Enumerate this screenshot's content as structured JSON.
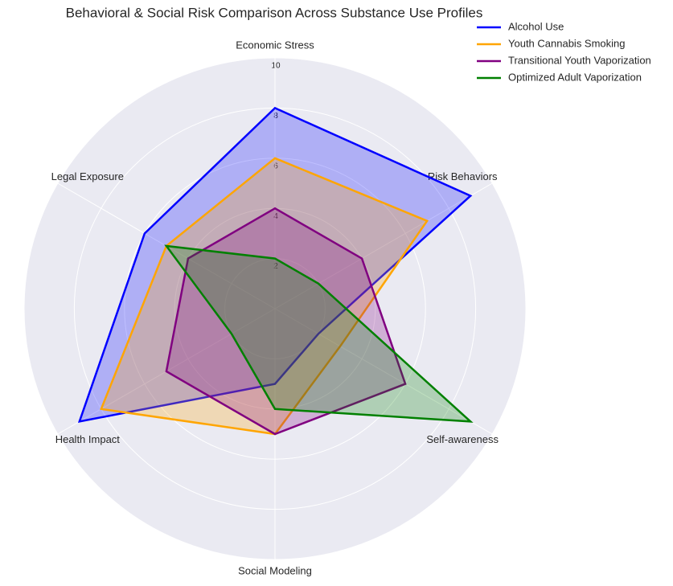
{
  "chart_data": {
    "type": "radar",
    "title": "Behavioral & Social Risk Comparison Across Substance Use Profiles",
    "categories": [
      "Economic Stress",
      "Risk Behaviors",
      "Self-awareness",
      "Social Modeling",
      "Health Impact",
      "Legal Exposure"
    ],
    "series": [
      {
        "name": "Alcohol Use",
        "color": "#0000ff",
        "values": [
          8,
          9,
          2,
          3,
          9,
          6
        ]
      },
      {
        "name": "Youth Cannabis Smoking",
        "color": "#ffa500",
        "values": [
          6,
          7,
          3,
          5,
          8,
          5
        ]
      },
      {
        "name": "Transitional Youth Vaporization",
        "color": "#800080",
        "values": [
          4,
          4,
          6,
          5,
          5,
          4
        ]
      },
      {
        "name": "Optimized Adult Vaporization",
        "color": "#008000",
        "values": [
          2,
          2,
          9,
          4,
          2,
          5
        ]
      }
    ],
    "ylim": [
      0,
      10
    ],
    "yticks": [
      2,
      4,
      6,
      8,
      10
    ],
    "grid": true,
    "legend": "upper right"
  }
}
